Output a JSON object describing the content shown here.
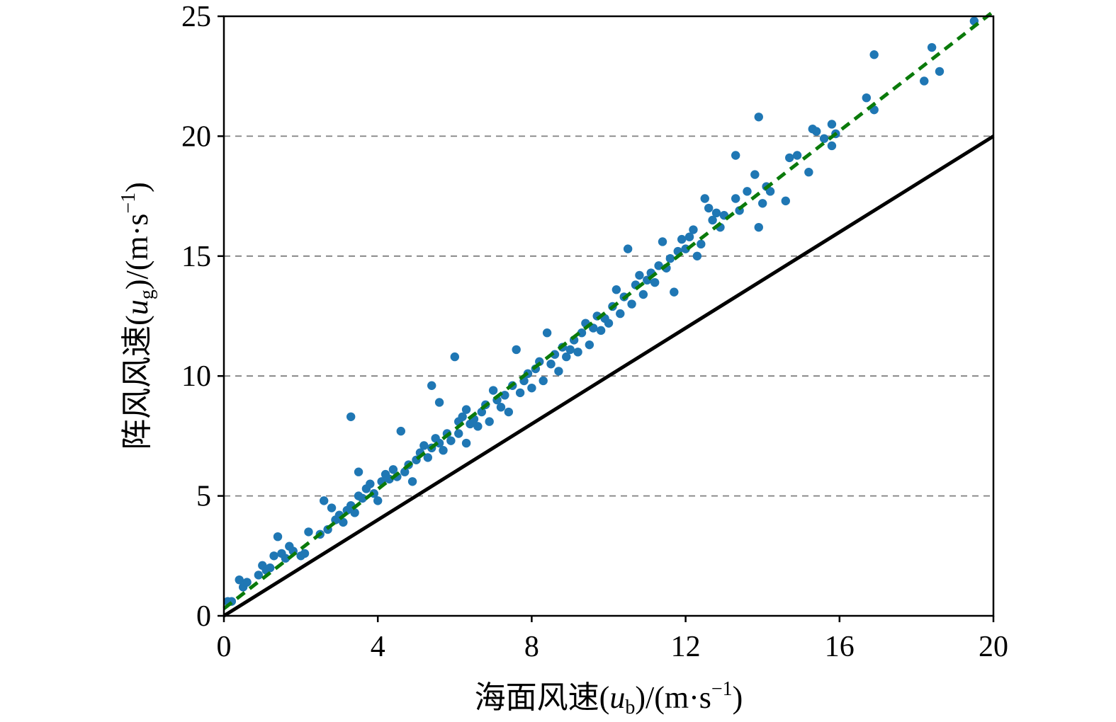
{
  "chart_data": {
    "type": "scatter",
    "xlabel": "海面风速(u_b)/(m·s⁻¹)",
    "ylabel": "阵风风速(u_g)/(m·s⁻¹)",
    "xlabel_parts": {
      "prefix": "海面风速(",
      "var": "u",
      "sub": "b",
      "suffix": ")/(m·s",
      "sup": "−1",
      "end": ")"
    },
    "ylabel_parts": {
      "prefix": "阵风风速(",
      "var": "u",
      "sub": "g",
      "suffix": ")/(m·s",
      "sup": "−1",
      "end": ")"
    },
    "xlim": [
      0,
      20
    ],
    "ylim": [
      0,
      25
    ],
    "xticks": [
      "0",
      "4",
      "8",
      "12",
      "16",
      "20"
    ],
    "yticks": [
      "0",
      "5",
      "10",
      "15",
      "20",
      "25"
    ],
    "grid": "horizontal dashed",
    "colors": {
      "points": "#1f77b4",
      "fit_line": "#0a7a0a",
      "identity_line": "#000000",
      "grid": "#808080"
    },
    "lines": [
      {
        "style": "solid",
        "color": "#000000",
        "x": [
          0,
          20
        ],
        "y": [
          0,
          20
        ]
      },
      {
        "style": "dashed",
        "color": "#0a7a0a",
        "x": [
          0,
          20
        ],
        "y": [
          0.3,
          25.2
        ]
      }
    ],
    "points": [
      [
        0.1,
        0.6
      ],
      [
        0.2,
        0.6
      ],
      [
        0.4,
        1.5
      ],
      [
        0.5,
        1.2
      ],
      [
        0.6,
        1.4
      ],
      [
        0.9,
        1.7
      ],
      [
        1.0,
        2.1
      ],
      [
        1.1,
        1.9
      ],
      [
        1.2,
        2.0
      ],
      [
        1.3,
        2.5
      ],
      [
        1.4,
        3.3
      ],
      [
        1.5,
        2.6
      ],
      [
        1.6,
        2.4
      ],
      [
        1.7,
        2.9
      ],
      [
        1.8,
        2.7
      ],
      [
        2.0,
        2.5
      ],
      [
        2.1,
        2.6
      ],
      [
        2.2,
        3.5
      ],
      [
        2.5,
        3.4
      ],
      [
        2.6,
        4.8
      ],
      [
        2.7,
        3.6
      ],
      [
        2.8,
        4.5
      ],
      [
        2.9,
        4.0
      ],
      [
        3.0,
        4.2
      ],
      [
        3.1,
        3.9
      ],
      [
        3.2,
        4.4
      ],
      [
        3.3,
        4.6
      ],
      [
        3.3,
        8.3
      ],
      [
        3.4,
        4.3
      ],
      [
        3.5,
        5.0
      ],
      [
        3.5,
        6.0
      ],
      [
        3.6,
        4.9
      ],
      [
        3.7,
        5.3
      ],
      [
        3.8,
        5.5
      ],
      [
        3.9,
        5.1
      ],
      [
        4.0,
        4.8
      ],
      [
        4.1,
        5.6
      ],
      [
        4.2,
        5.9
      ],
      [
        4.3,
        5.7
      ],
      [
        4.4,
        6.1
      ],
      [
        4.5,
        5.8
      ],
      [
        4.6,
        7.7
      ],
      [
        4.7,
        6.0
      ],
      [
        4.8,
        6.3
      ],
      [
        4.9,
        5.6
      ],
      [
        5.0,
        6.5
      ],
      [
        5.1,
        6.8
      ],
      [
        5.2,
        7.1
      ],
      [
        5.3,
        6.6
      ],
      [
        5.4,
        7.0
      ],
      [
        5.4,
        9.6
      ],
      [
        5.5,
        7.4
      ],
      [
        5.6,
        7.2
      ],
      [
        5.6,
        8.9
      ],
      [
        5.7,
        6.9
      ],
      [
        5.8,
        7.6
      ],
      [
        5.9,
        7.3
      ],
      [
        6.0,
        10.8
      ],
      [
        6.1,
        8.1
      ],
      [
        6.1,
        7.6
      ],
      [
        6.2,
        8.3
      ],
      [
        6.3,
        8.6
      ],
      [
        6.3,
        7.2
      ],
      [
        6.4,
        8.0
      ],
      [
        6.5,
        8.2
      ],
      [
        6.6,
        7.9
      ],
      [
        6.7,
        8.5
      ],
      [
        6.8,
        8.8
      ],
      [
        6.9,
        8.1
      ],
      [
        7.0,
        9.4
      ],
      [
        7.1,
        9.0
      ],
      [
        7.2,
        8.7
      ],
      [
        7.3,
        9.2
      ],
      [
        7.4,
        8.5
      ],
      [
        7.5,
        9.6
      ],
      [
        7.6,
        11.1
      ],
      [
        7.7,
        9.3
      ],
      [
        7.8,
        9.8
      ],
      [
        7.9,
        10.1
      ],
      [
        8.0,
        9.5
      ],
      [
        8.1,
        10.3
      ],
      [
        8.2,
        10.6
      ],
      [
        8.3,
        9.8
      ],
      [
        8.4,
        11.8
      ],
      [
        8.5,
        10.5
      ],
      [
        8.6,
        10.9
      ],
      [
        8.7,
        10.2
      ],
      [
        8.8,
        11.2
      ],
      [
        8.9,
        10.8
      ],
      [
        9.0,
        11.1
      ],
      [
        9.1,
        11.5
      ],
      [
        9.2,
        11.0
      ],
      [
        9.3,
        11.8
      ],
      [
        9.4,
        12.2
      ],
      [
        9.5,
        11.3
      ],
      [
        9.6,
        12.0
      ],
      [
        9.7,
        12.5
      ],
      [
        9.8,
        11.9
      ],
      [
        9.9,
        12.4
      ],
      [
        10.0,
        12.2
      ],
      [
        10.1,
        12.9
      ],
      [
        10.2,
        13.6
      ],
      [
        10.3,
        12.6
      ],
      [
        10.4,
        13.3
      ],
      [
        10.5,
        15.3
      ],
      [
        10.6,
        13.0
      ],
      [
        10.7,
        13.8
      ],
      [
        10.8,
        14.2
      ],
      [
        10.9,
        13.4
      ],
      [
        11.0,
        14.0
      ],
      [
        11.1,
        14.3
      ],
      [
        11.2,
        13.9
      ],
      [
        11.3,
        14.6
      ],
      [
        11.4,
        15.6
      ],
      [
        11.5,
        14.5
      ],
      [
        11.6,
        14.9
      ],
      [
        11.7,
        13.5
      ],
      [
        11.8,
        15.2
      ],
      [
        11.9,
        15.7
      ],
      [
        12.0,
        15.3
      ],
      [
        12.1,
        15.8
      ],
      [
        12.2,
        16.1
      ],
      [
        12.3,
        15.0
      ],
      [
        12.4,
        15.5
      ],
      [
        12.5,
        17.4
      ],
      [
        12.6,
        17.0
      ],
      [
        12.7,
        16.5
      ],
      [
        12.8,
        16.8
      ],
      [
        12.9,
        16.2
      ],
      [
        13.0,
        16.7
      ],
      [
        13.3,
        19.2
      ],
      [
        13.3,
        17.4
      ],
      [
        13.4,
        16.9
      ],
      [
        13.6,
        17.7
      ],
      [
        13.8,
        18.4
      ],
      [
        13.9,
        16.2
      ],
      [
        13.9,
        20.8
      ],
      [
        14.0,
        17.2
      ],
      [
        14.1,
        17.9
      ],
      [
        14.2,
        17.7
      ],
      [
        14.6,
        17.3
      ],
      [
        14.7,
        19.1
      ],
      [
        14.9,
        19.2
      ],
      [
        15.2,
        18.5
      ],
      [
        15.3,
        20.3
      ],
      [
        15.4,
        20.2
      ],
      [
        15.6,
        19.9
      ],
      [
        15.8,
        19.6
      ],
      [
        15.8,
        20.5
      ],
      [
        15.9,
        20.1
      ],
      [
        16.7,
        21.6
      ],
      [
        16.9,
        21.1
      ],
      [
        16.9,
        23.4
      ],
      [
        18.2,
        22.3
      ],
      [
        18.4,
        23.7
      ],
      [
        18.6,
        22.7
      ],
      [
        19.5,
        24.8
      ]
    ]
  }
}
